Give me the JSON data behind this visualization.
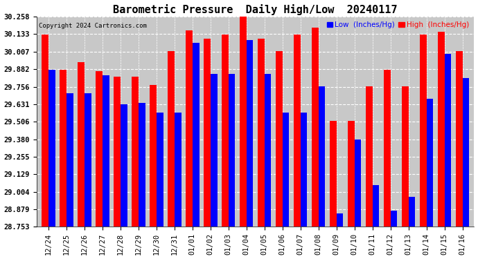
{
  "title": "Barometric Pressure  Daily High/Low  20240117",
  "copyright": "Copyright 2024 Cartronics.com",
  "legend_low": "Low  (Inches/Hg)",
  "legend_high": "High  (Inches/Hg)",
  "dates": [
    "12/24",
    "12/25",
    "12/26",
    "12/27",
    "12/28",
    "12/29",
    "12/30",
    "12/31",
    "01/01",
    "01/02",
    "01/03",
    "01/04",
    "01/05",
    "01/06",
    "01/07",
    "01/08",
    "01/09",
    "01/10",
    "01/11",
    "01/12",
    "01/13",
    "01/14",
    "01/15",
    "01/16"
  ],
  "high_values": [
    30.13,
    29.88,
    29.93,
    29.87,
    29.83,
    29.83,
    29.77,
    30.01,
    30.16,
    30.1,
    30.13,
    30.26,
    30.1,
    30.01,
    30.13,
    30.18,
    29.51,
    29.51,
    29.76,
    29.88,
    29.76,
    30.13,
    30.15,
    30.01
  ],
  "low_values": [
    29.88,
    29.71,
    29.71,
    29.84,
    29.63,
    29.64,
    29.57,
    29.57,
    30.07,
    29.85,
    29.85,
    30.09,
    29.85,
    29.57,
    29.57,
    29.76,
    28.85,
    29.38,
    29.05,
    28.87,
    28.97,
    29.67,
    29.99,
    29.82
  ],
  "ymin": 28.753,
  "ymax": 30.258,
  "yticks": [
    28.753,
    28.879,
    29.004,
    29.129,
    29.255,
    29.38,
    29.506,
    29.631,
    29.756,
    29.882,
    30.007,
    30.133,
    30.258
  ],
  "bar_color_high": "#FF0000",
  "bar_color_low": "#0000FF",
  "bg_color": "#FFFFFF",
  "plot_bg_color": "#C8C8C8",
  "grid_color": "#FFFFFF",
  "title_fontsize": 11,
  "tick_fontsize": 7.5
}
